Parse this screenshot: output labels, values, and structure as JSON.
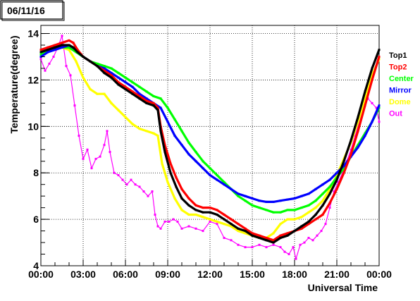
{
  "date_label": "06/11/16",
  "chart_data": {
    "type": "scatter",
    "title": "",
    "xlabel": "Universal Time",
    "ylabel": "Temperature(degree)",
    "xlim": [
      0,
      24
    ],
    "ylim": [
      4,
      14.35
    ],
    "grid": true,
    "legend_position": "right",
    "x_ticks": [
      "00:00",
      "03:00",
      "06:00",
      "09:00",
      "12:00",
      "15:00",
      "18:00",
      "21:00",
      "00:00"
    ],
    "y_ticks": [
      "4",
      "6",
      "8",
      "10",
      "12",
      "14"
    ],
    "series": [
      {
        "name": "Out",
        "color": "#ff00ff",
        "x": [
          0.0,
          0.3,
          0.6,
          0.9,
          1.2,
          1.5,
          1.8,
          2.1,
          2.4,
          2.7,
          3.0,
          3.3,
          3.6,
          3.9,
          4.2,
          4.5,
          4.7,
          4.9,
          5.2,
          5.5,
          5.8,
          6.1,
          6.4,
          6.7,
          7.0,
          7.3,
          7.6,
          7.9,
          8.1,
          8.3,
          8.5,
          8.8,
          9.1,
          9.4,
          9.7,
          10.0,
          10.5,
          11.0,
          11.5,
          12.0,
          12.5,
          13.0,
          13.5,
          14.0,
          14.5,
          15.0,
          15.5,
          16.0,
          16.5,
          17.0,
          17.3,
          17.6,
          17.9,
          18.1,
          18.4,
          18.7,
          19.0,
          19.3,
          19.6,
          19.9,
          20.2,
          20.5,
          20.8,
          21.1,
          21.4,
          21.7,
          22.0,
          22.3,
          22.6,
          22.9,
          23.2,
          23.5,
          23.8,
          24.0
        ],
        "y": [
          12.9,
          12.4,
          12.7,
          13.0,
          13.4,
          13.9,
          12.6,
          12.2,
          10.9,
          9.6,
          8.6,
          9.0,
          8.2,
          8.6,
          8.7,
          9.2,
          9.8,
          8.9,
          8.0,
          7.9,
          7.7,
          7.5,
          7.7,
          7.5,
          7.4,
          7.2,
          7.0,
          7.2,
          6.2,
          5.7,
          5.6,
          5.9,
          5.9,
          6.0,
          5.9,
          5.6,
          5.7,
          5.6,
          5.5,
          5.9,
          5.8,
          5.2,
          5.1,
          4.9,
          4.8,
          4.8,
          4.9,
          4.8,
          4.9,
          4.8,
          4.6,
          4.5,
          4.8,
          4.3,
          4.9,
          5.0,
          5.2,
          5.1,
          5.3,
          5.5,
          5.8,
          6.5,
          7.2,
          7.6,
          8.0,
          8.5,
          9.0,
          9.6,
          10.2,
          10.7,
          11.2,
          11.0,
          10.8,
          10.2
        ]
      },
      {
        "name": "Dome",
        "color": "#ffff00",
        "x": [
          0.0,
          0.5,
          1.0,
          1.5,
          2.0,
          2.5,
          3.0,
          3.5,
          4.0,
          4.5,
          5.0,
          5.5,
          6.0,
          6.5,
          7.0,
          7.5,
          8.0,
          8.3,
          8.6,
          9.0,
          9.5,
          10.0,
          10.5,
          11.0,
          11.5,
          12.0,
          12.5,
          13.0,
          13.5,
          14.0,
          14.5,
          15.0,
          15.5,
          16.0,
          16.5,
          17.0,
          17.5,
          18.0,
          18.5,
          19.0,
          19.5,
          20.0,
          20.5,
          21.0,
          21.5,
          22.0,
          22.5,
          23.0,
          23.5,
          24.0
        ],
        "y": [
          13.2,
          13.3,
          13.3,
          13.4,
          13.3,
          12.8,
          12.1,
          11.6,
          11.4,
          11.4,
          11.0,
          10.7,
          10.4,
          10.1,
          9.9,
          9.8,
          9.7,
          9.6,
          8.4,
          7.6,
          6.9,
          6.4,
          6.2,
          6.2,
          6.1,
          6.0,
          5.9,
          5.8,
          5.7,
          5.5,
          5.4,
          5.3,
          5.2,
          5.2,
          5.4,
          5.8,
          6.0,
          6.0,
          6.1,
          6.3,
          6.5,
          6.8,
          7.3,
          7.9,
          8.6,
          9.3,
          10.2,
          11.2,
          12.2,
          12.9
        ]
      },
      {
        "name": "Center",
        "color": "#00ff00",
        "x": [
          0.0,
          0.5,
          1.0,
          1.5,
          2.0,
          2.5,
          3.0,
          3.5,
          4.0,
          4.5,
          5.0,
          5.5,
          6.0,
          6.5,
          7.0,
          7.5,
          8.0,
          8.5,
          9.0,
          9.5,
          10.0,
          10.5,
          11.0,
          11.5,
          12.0,
          12.5,
          13.0,
          13.5,
          14.0,
          14.5,
          15.0,
          15.5,
          16.0,
          16.5,
          17.0,
          17.5,
          18.0,
          18.5,
          19.0,
          19.5,
          20.0,
          20.5,
          21.0,
          21.5,
          22.0,
          22.5,
          23.0,
          23.5,
          24.0
        ],
        "y": [
          13.1,
          13.3,
          13.5,
          13.4,
          13.4,
          13.2,
          13.0,
          12.8,
          12.7,
          12.6,
          12.5,
          12.3,
          12.1,
          11.9,
          11.7,
          11.5,
          11.3,
          11.2,
          10.8,
          10.3,
          9.8,
          9.3,
          8.9,
          8.5,
          8.2,
          7.9,
          7.6,
          7.3,
          7.0,
          6.8,
          6.6,
          6.5,
          6.4,
          6.3,
          6.3,
          6.4,
          6.4,
          6.5,
          6.6,
          6.8,
          7.1,
          7.4,
          7.8,
          8.2,
          8.7,
          9.2,
          9.7,
          10.2,
          10.8
        ]
      },
      {
        "name": "Mirror",
        "color": "#0000ff",
        "x": [
          0.0,
          0.5,
          1.0,
          1.5,
          2.0,
          2.5,
          3.0,
          3.5,
          4.0,
          4.5,
          5.0,
          5.5,
          6.0,
          6.5,
          7.0,
          7.5,
          8.0,
          8.5,
          9.0,
          9.5,
          10.0,
          10.5,
          11.0,
          11.5,
          12.0,
          12.5,
          13.0,
          13.5,
          14.0,
          14.5,
          15.0,
          15.5,
          16.0,
          16.5,
          17.0,
          17.5,
          18.0,
          18.5,
          19.0,
          19.5,
          20.0,
          20.5,
          21.0,
          21.5,
          22.0,
          22.5,
          23.0,
          23.5,
          24.0
        ],
        "y": [
          13.0,
          13.2,
          13.3,
          13.4,
          13.5,
          13.3,
          13.0,
          12.8,
          12.6,
          12.5,
          12.3,
          12.1,
          11.9,
          11.7,
          11.4,
          11.2,
          11.0,
          10.8,
          10.2,
          9.6,
          9.2,
          8.8,
          8.5,
          8.2,
          7.9,
          7.7,
          7.5,
          7.3,
          7.1,
          7.0,
          6.9,
          6.8,
          6.75,
          6.75,
          6.8,
          6.85,
          6.9,
          7.0,
          7.1,
          7.3,
          7.5,
          7.7,
          8.0,
          8.3,
          8.7,
          9.1,
          9.6,
          10.2,
          10.9
        ]
      },
      {
        "name": "Top2",
        "color": "#ff0000",
        "x": [
          0.0,
          0.5,
          1.0,
          1.5,
          2.0,
          2.3,
          2.6,
          3.0,
          3.5,
          4.0,
          4.5,
          5.0,
          5.5,
          6.0,
          6.5,
          7.0,
          7.5,
          8.0,
          8.3,
          8.5,
          8.8,
          9.2,
          9.6,
          10.0,
          10.5,
          11.0,
          11.5,
          12.0,
          12.5,
          13.0,
          13.5,
          14.0,
          14.5,
          15.0,
          15.5,
          16.0,
          16.5,
          17.0,
          17.5,
          18.0,
          18.5,
          19.0,
          19.5,
          20.0,
          20.5,
          21.0,
          21.5,
          22.0,
          22.5,
          23.0,
          23.5,
          24.0
        ],
        "y": [
          13.3,
          13.4,
          13.5,
          13.6,
          13.7,
          13.6,
          13.3,
          13.0,
          12.8,
          12.6,
          12.4,
          12.2,
          11.9,
          11.7,
          11.5,
          11.3,
          11.1,
          11.0,
          10.8,
          10.0,
          9.2,
          8.4,
          7.8,
          7.3,
          6.9,
          6.6,
          6.5,
          6.5,
          6.4,
          6.2,
          6.0,
          5.8,
          5.6,
          5.4,
          5.3,
          5.2,
          5.1,
          5.3,
          5.4,
          5.5,
          5.6,
          5.8,
          6.0,
          6.2,
          6.7,
          7.3,
          8.0,
          8.8,
          9.8,
          10.9,
          12.0,
          13.0
        ]
      },
      {
        "name": "Top1",
        "color": "#000000",
        "x": [
          0.0,
          0.5,
          1.0,
          1.5,
          2.0,
          2.3,
          2.6,
          3.0,
          3.5,
          4.0,
          4.5,
          5.0,
          5.5,
          6.0,
          6.5,
          7.0,
          7.5,
          8.0,
          8.3,
          8.5,
          8.8,
          9.2,
          9.6,
          10.0,
          10.5,
          11.0,
          11.5,
          12.0,
          12.5,
          13.0,
          13.5,
          14.0,
          14.5,
          15.0,
          15.5,
          16.0,
          16.5,
          17.0,
          17.5,
          18.0,
          18.5,
          19.0,
          19.5,
          20.0,
          20.5,
          21.0,
          21.5,
          22.0,
          22.5,
          23.0,
          23.5,
          24.0
        ],
        "y": [
          13.2,
          13.3,
          13.4,
          13.5,
          13.5,
          13.4,
          13.2,
          13.0,
          12.8,
          12.6,
          12.3,
          12.1,
          11.8,
          11.6,
          11.4,
          11.2,
          11.0,
          10.9,
          10.7,
          9.8,
          8.9,
          8.0,
          7.4,
          6.9,
          6.6,
          6.4,
          6.3,
          6.3,
          6.2,
          6.0,
          5.8,
          5.6,
          5.5,
          5.3,
          5.2,
          5.1,
          5.0,
          5.2,
          5.3,
          5.5,
          5.7,
          5.9,
          6.2,
          6.6,
          7.1,
          7.7,
          8.5,
          9.4,
          10.4,
          11.5,
          12.5,
          13.3
        ]
      }
    ],
    "legend": [
      "Top1",
      "Top2",
      "Center",
      "Mirror",
      "Dome",
      "Out"
    ]
  }
}
